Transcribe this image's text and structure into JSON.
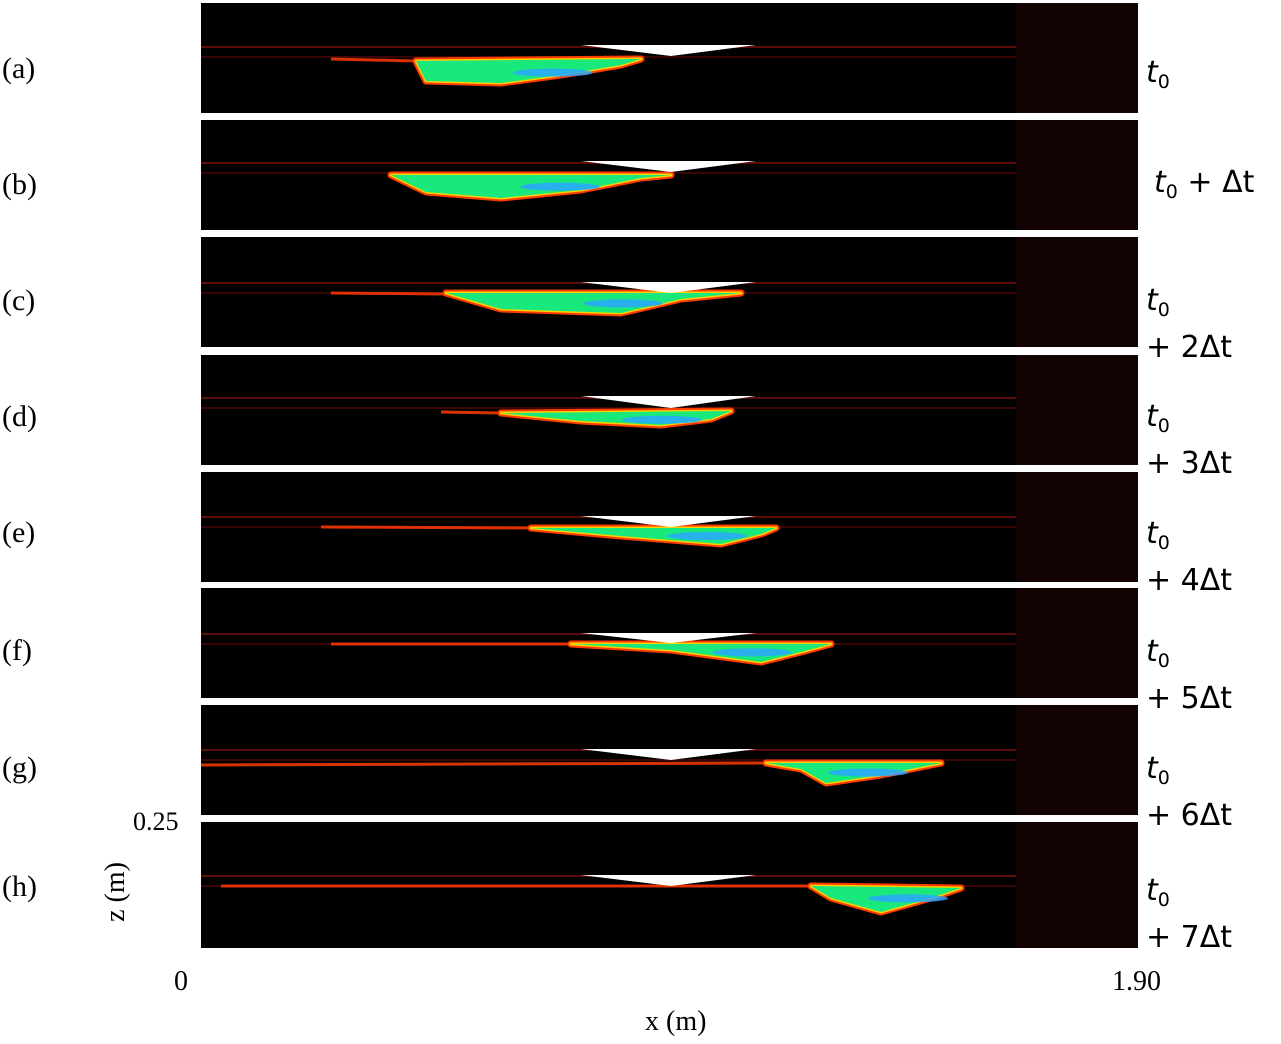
{
  "panels": [
    {
      "label": "(a)",
      "time_t": "t",
      "time_sub": "0",
      "time_rest": "",
      "time_line2": ""
    },
    {
      "label": "(b)",
      "time_t": "t",
      "time_sub": "0",
      "time_rest": " + Δt",
      "time_line2": ""
    },
    {
      "label": "(c)",
      "time_t": "t",
      "time_sub": "0",
      "time_rest": "",
      "time_line2": "+ 2Δt"
    },
    {
      "label": "(d)",
      "time_t": "t",
      "time_sub": "0",
      "time_rest": "",
      "time_line2": "+ 3Δt"
    },
    {
      "label": "(e)",
      "time_t": "t",
      "time_sub": "0",
      "time_rest": "",
      "time_line2": "+ 4Δt"
    },
    {
      "label": "(f)",
      "time_t": "t",
      "time_sub": "0",
      "time_rest": "",
      "time_line2": "+ 5Δt"
    },
    {
      "label": "(g)",
      "time_t": "t",
      "time_sub": "0",
      "time_rest": "",
      "time_line2": "+ 6Δt"
    },
    {
      "label": "(h)",
      "time_t": "t",
      "time_sub": "0",
      "time_rest": "",
      "time_line2": "+ 7Δt"
    }
  ],
  "axes": {
    "x_label": "x (m)",
    "z_label": "z (m)",
    "x_min": "0",
    "x_max": "1.90",
    "z_tick": "0.25"
  },
  "colors": {
    "background": "#000000",
    "interface": "#ff3a00",
    "core": "#19e87c",
    "inner": "#2aa6ff",
    "wedge": "#ffffff"
  }
}
